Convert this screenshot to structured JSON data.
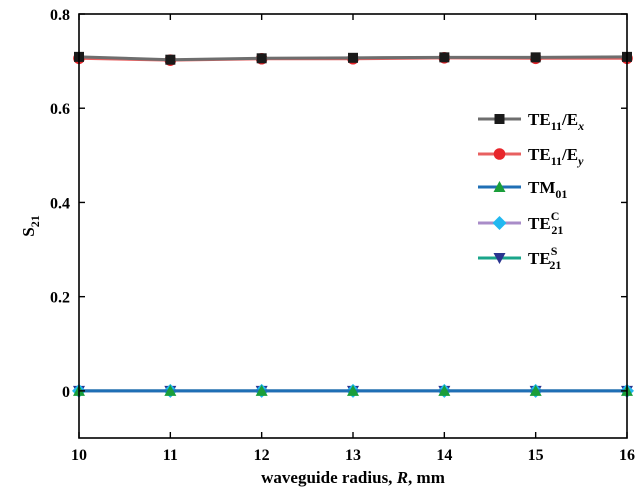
{
  "chart_data": {
    "type": "line",
    "xlabel": "waveguide radius, R, mm",
    "ylabel": "S21",
    "xlim": [
      10,
      16
    ],
    "ylim": [
      -0.1,
      0.8
    ],
    "x_ticks": [
      10,
      11,
      12,
      13,
      14,
      15,
      16
    ],
    "x_tick_labels": [
      "10",
      "11",
      "12",
      "13",
      "14",
      "15",
      "16"
    ],
    "y_ticks": [
      0,
      0.2,
      0.4,
      0.6,
      0.8
    ],
    "y_tick_labels": [
      "0",
      "0.2",
      "0.4",
      "0.6",
      "0.8"
    ],
    "grid": false,
    "legend_position": "right",
    "x": [
      10,
      11,
      12,
      13,
      14,
      15,
      16
    ],
    "series": [
      {
        "name": "TE11/Ex",
        "label_main": "TE",
        "label_sub": "11",
        "label_rest": "/E",
        "label_rest_sub": "x",
        "marker": "square",
        "line_color": "#6e6e6e",
        "marker_color": "#1a1a1a",
        "values": [
          0.709,
          0.703,
          0.706,
          0.707,
          0.708,
          0.708,
          0.709
        ]
      },
      {
        "name": "TE11/Ey",
        "label_main": "TE",
        "label_sub": "11",
        "label_rest": "/E",
        "label_rest_sub": "y",
        "marker": "circle",
        "line_color": "#e86060",
        "marker_color": "#e8252a",
        "values": [
          0.706,
          0.702,
          0.705,
          0.705,
          0.707,
          0.706,
          0.706
        ]
      },
      {
        "name": "TM01",
        "label_main": "TM",
        "label_sub": "01",
        "label_sup": "",
        "marker": "triangle-up",
        "line_color": "#1f6fb5",
        "marker_color": "#1a9e3a",
        "values": [
          0,
          0,
          0,
          0,
          0,
          0,
          0
        ]
      },
      {
        "name": "TE21C",
        "label_main": "TE",
        "label_sub": "21",
        "label_sup": "C",
        "marker": "diamond",
        "line_color": "#a98cc8",
        "marker_color": "#22b8f0",
        "values": [
          0,
          0,
          0,
          0,
          0,
          0,
          0
        ]
      },
      {
        "name": "TE21S",
        "label_main": "TE",
        "label_sub": "21",
        "label_sup": "S",
        "marker": "triangle-down",
        "line_color": "#1aa58a",
        "marker_color": "#2a3590",
        "values": [
          0,
          0,
          0,
          0,
          0,
          0,
          0
        ]
      }
    ]
  }
}
